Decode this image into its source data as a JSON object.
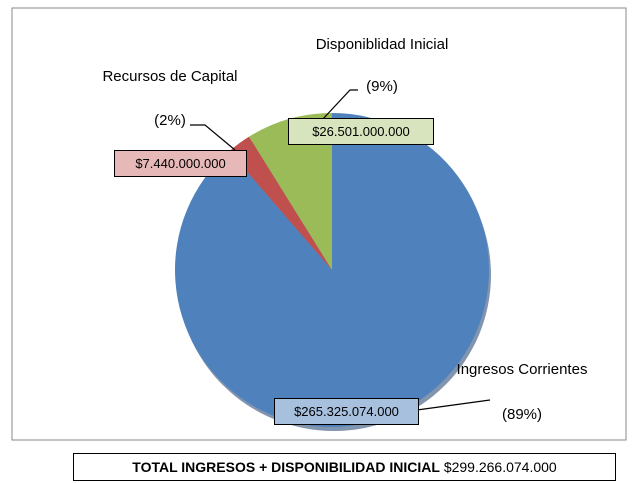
{
  "chart_data": {
    "type": "pie",
    "categories": [
      "Ingresos Corrientes",
      "Recursos de Capital",
      "Disponiblidad Inicial"
    ],
    "values": [
      265325074000,
      7440000000,
      26501000000
    ],
    "value_labels": [
      "$265.325.074.000",
      "$7.440.000.000",
      "$26.501.000.000"
    ],
    "percentages": [
      89,
      2,
      9
    ],
    "percentage_labels": [
      "(89%)",
      "(2%)",
      "(9%)"
    ],
    "colors": [
      "#4f81bd",
      "#c0504d",
      "#9bbb59"
    ],
    "label_colors": [
      "#a7c0de",
      "#e6b9b8",
      "#d7e4bd"
    ],
    "total_label": "TOTAL INGRESOS + DISPONIBILIDAD INICIAL",
    "total_value": 299266074000,
    "total_value_label": "$299.266.074.000"
  }
}
